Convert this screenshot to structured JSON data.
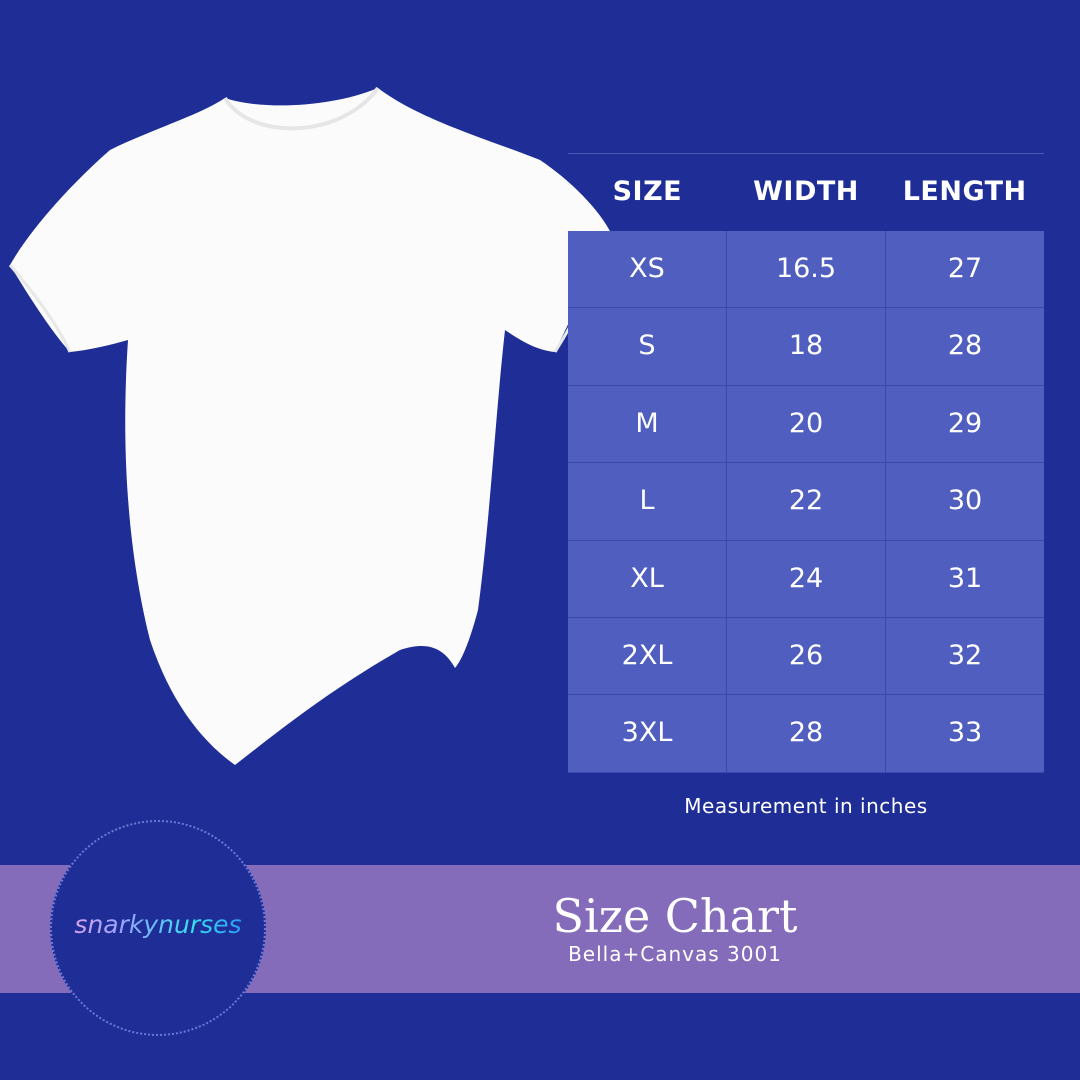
{
  "table": {
    "headers": [
      "SIZE",
      "WIDTH",
      "LENGTH"
    ],
    "rows": [
      [
        "XS",
        "16.5",
        "27"
      ],
      [
        "S",
        "18",
        "28"
      ],
      [
        "M",
        "20",
        "29"
      ],
      [
        "L",
        "22",
        "30"
      ],
      [
        "XL",
        "24",
        "31"
      ],
      [
        "2XL",
        "26",
        "32"
      ],
      [
        "3XL",
        "28",
        "33"
      ]
    ]
  },
  "note": "Measurement in inches",
  "title": "Size Chart",
  "subtitle": "Bella+Canvas 3001",
  "logo": "snarkynurses",
  "colors": {
    "background": "#1f2e96",
    "cell": "#505fbf",
    "band": "#856cba"
  }
}
